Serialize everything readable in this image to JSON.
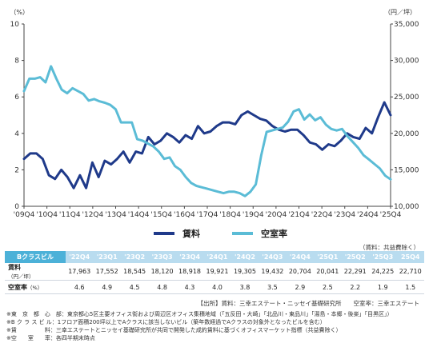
{
  "chart_data": {
    "type": "line",
    "left_unit": "（%）",
    "right_unit": "（円／坪）",
    "left_axis": {
      "min": 0,
      "max": 10,
      "ticks": [
        0,
        2,
        4,
        6,
        8,
        10
      ]
    },
    "right_axis": {
      "min": 10000,
      "max": 35000,
      "ticks": [
        "10,000",
        "15,000",
        "20,000",
        "25,000",
        "30,000",
        "35,000"
      ],
      "tick_values": [
        10000,
        15000,
        20000,
        25000,
        30000,
        35000
      ]
    },
    "x_tick_labels": [
      "'09Q4",
      "'10Q4",
      "'11Q4",
      "'12Q4",
      "'13Q4",
      "'14Q4",
      "'15Q4",
      "'16Q4",
      "'17Q4",
      "'18Q4",
      "'19Q4",
      "'20Q4",
      "'21Q4",
      "'22Q4",
      "'23Q4",
      "'24Q4",
      "'25Q4"
    ],
    "series": [
      {
        "name": "賃料",
        "axis": "left",
        "color": "#1f3a8a",
        "values": [
          2.6,
          2.9,
          2.9,
          2.6,
          1.7,
          1.5,
          2.0,
          1.6,
          1.0,
          1.7,
          1.0,
          2.4,
          1.6,
          2.5,
          2.3,
          2.6,
          3.0,
          2.4,
          3.0,
          2.9,
          3.8,
          3.4,
          3.6,
          4.0,
          3.8,
          3.5,
          3.9,
          3.7,
          4.4,
          4.0,
          4.1,
          4.4,
          4.6,
          4.6,
          4.5,
          5.0,
          5.2,
          5.0,
          4.8,
          4.7,
          4.4,
          4.2,
          4.1,
          4.2,
          4.2,
          3.9,
          3.5,
          3.4,
          3.1,
          3.4,
          3.3,
          3.6,
          4.0,
          3.8,
          3.7,
          4.3,
          4.0,
          4.9,
          5.7,
          5.0
        ]
      },
      {
        "name": "空室率",
        "axis": "right",
        "color": "#5bbcd6",
        "values": [
          25.8,
          27.5,
          27.5,
          27.7,
          27.0,
          29.2,
          27.5,
          26.0,
          25.5,
          26.2,
          25.8,
          25.4,
          24.5,
          24.7,
          24.4,
          24.2,
          23.9,
          23.3,
          21.5,
          21.5,
          21.5,
          19.2,
          19.0,
          18.6,
          18.2,
          17.5,
          16.5,
          16.7,
          15.5,
          15.0,
          14.0,
          13.2,
          12.8,
          12.6,
          12.4,
          12.2,
          12.0,
          11.8,
          12.0,
          12.0,
          11.8,
          11.4,
          12.0,
          13.0,
          17.0,
          20.2,
          20.4,
          20.6,
          20.8,
          21.6,
          23.0,
          23.3,
          21.9,
          22.6,
          21.8,
          22.2,
          21.2,
          20.6,
          20.4,
          20.6,
          19.6,
          18.8,
          18.0,
          17.0,
          16.4,
          15.8,
          15.2,
          14.2,
          13.7
        ]
      }
    ]
  },
  "legend": {
    "rent": "賃料",
    "vacancy": "空室率"
  },
  "table_note": "（賃料：共益費除く）",
  "table": {
    "header_label": "Bクラスビル",
    "periods": [
      "'22Q4",
      "'23Q1",
      "'23Q2",
      "'23Q3",
      "'23Q4",
      "'24Q1",
      "'24Q2",
      "'24Q3",
      "'24Q4",
      "'25Q1",
      "'25Q2",
      "'25Q3",
      "25Q4"
    ],
    "rent_label": "賃料",
    "rent_unit": "（円／坪）",
    "rent": [
      "17,963",
      "17,552",
      "18,545",
      "18,120",
      "18,918",
      "19,921",
      "19,305",
      "19,432",
      "20,704",
      "20,041",
      "22,291",
      "24,225",
      "22,710"
    ],
    "vacancy_label": "空室率",
    "vacancy_unit": "（%）",
    "vacancy": [
      "4.6",
      "4.9",
      "4.5",
      "4.8",
      "4.3",
      "4.0",
      "3.8",
      "3.5",
      "2.9",
      "2.5",
      "2.2",
      "1.9",
      "1.5"
    ]
  },
  "source": "【出所】賃料：三幸エステート・ニッセイ基礎研究所　　空室率：三幸エステート",
  "notes": [
    "※東　京　都　心　部：東京都心5区主要オフィス街および周辺区オフィス集積地域（「五反田・大崎」「北品川・東品川」「湯島・本郷・後楽」「目黒区」）",
    "※B ク ラ ス ビ ル：1フロア面積200坪以上でAクラスに該当しないビル（築年数経過でAクラスの対象外となったビルを含む）",
    "※賃　　　　　料：三幸エステートとニッセイ基礎研究所が共同で開発した成約賃料に基づくオフィスマーケット指標（共益費除く）",
    "※空　　室　　率：各四半期末時点"
  ]
}
